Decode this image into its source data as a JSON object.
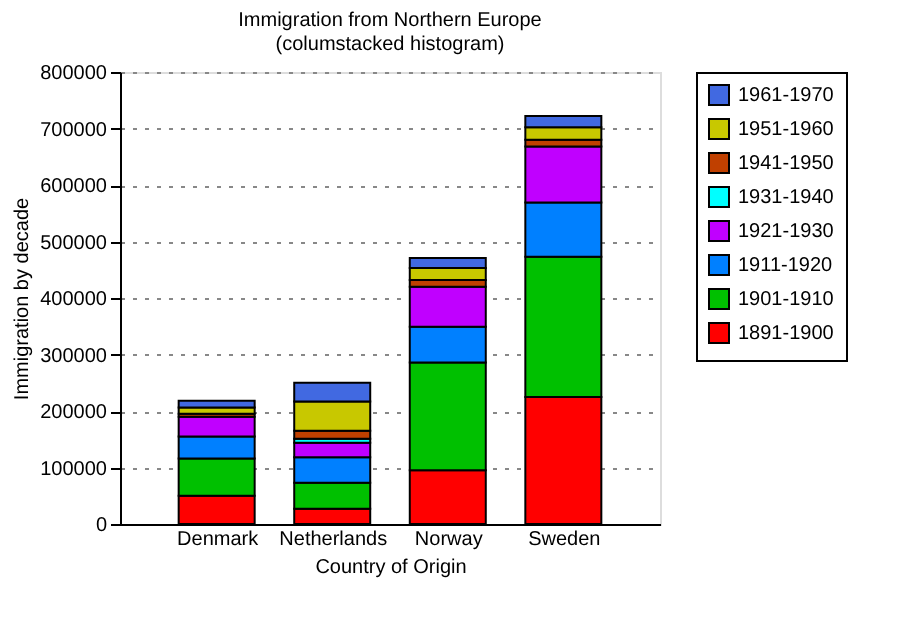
{
  "chart_data": {
    "type": "bar",
    "stacked": true,
    "title": "Immigration from Northern Europe",
    "subtitle": "(columstacked histogram)",
    "xlabel": "Country of Origin",
    "ylabel": "Immigration by decade",
    "categories": [
      "Denmark",
      "Netherlands",
      "Norway",
      "Sweden"
    ],
    "ylim": [
      0,
      800000
    ],
    "yticks": [
      0,
      100000,
      200000,
      300000,
      400000,
      500000,
      600000,
      700000,
      800000
    ],
    "grid": "y",
    "legend": "right",
    "series": [
      {
        "name": "1891-1900",
        "color": "#ff0000",
        "values": [
          50000,
          27000,
          95000,
          225000
        ]
      },
      {
        "name": "1901-1910",
        "color": "#00c000",
        "values": [
          66000,
          46000,
          191000,
          248000
        ]
      },
      {
        "name": "1911-1920",
        "color": "#0080ff",
        "values": [
          39000,
          45000,
          63000,
          96000
        ]
      },
      {
        "name": "1921-1930",
        "color": "#c000ff",
        "values": [
          35000,
          26000,
          71000,
          99000
        ]
      },
      {
        "name": "1931-1940",
        "color": "#00ffff",
        "values": [
          null,
          7000,
          null,
          null
        ]
      },
      {
        "name": "1941-1950",
        "color": "#c04000",
        "values": [
          5000,
          14000,
          12000,
          12000
        ]
      },
      {
        "name": "1951-1960",
        "color": "#c8c800",
        "values": [
          11000,
          52000,
          21000,
          22000
        ]
      },
      {
        "name": "1961-1970",
        "color": "#4169e1",
        "values": [
          12000,
          33000,
          18000,
          20000
        ]
      }
    ]
  }
}
